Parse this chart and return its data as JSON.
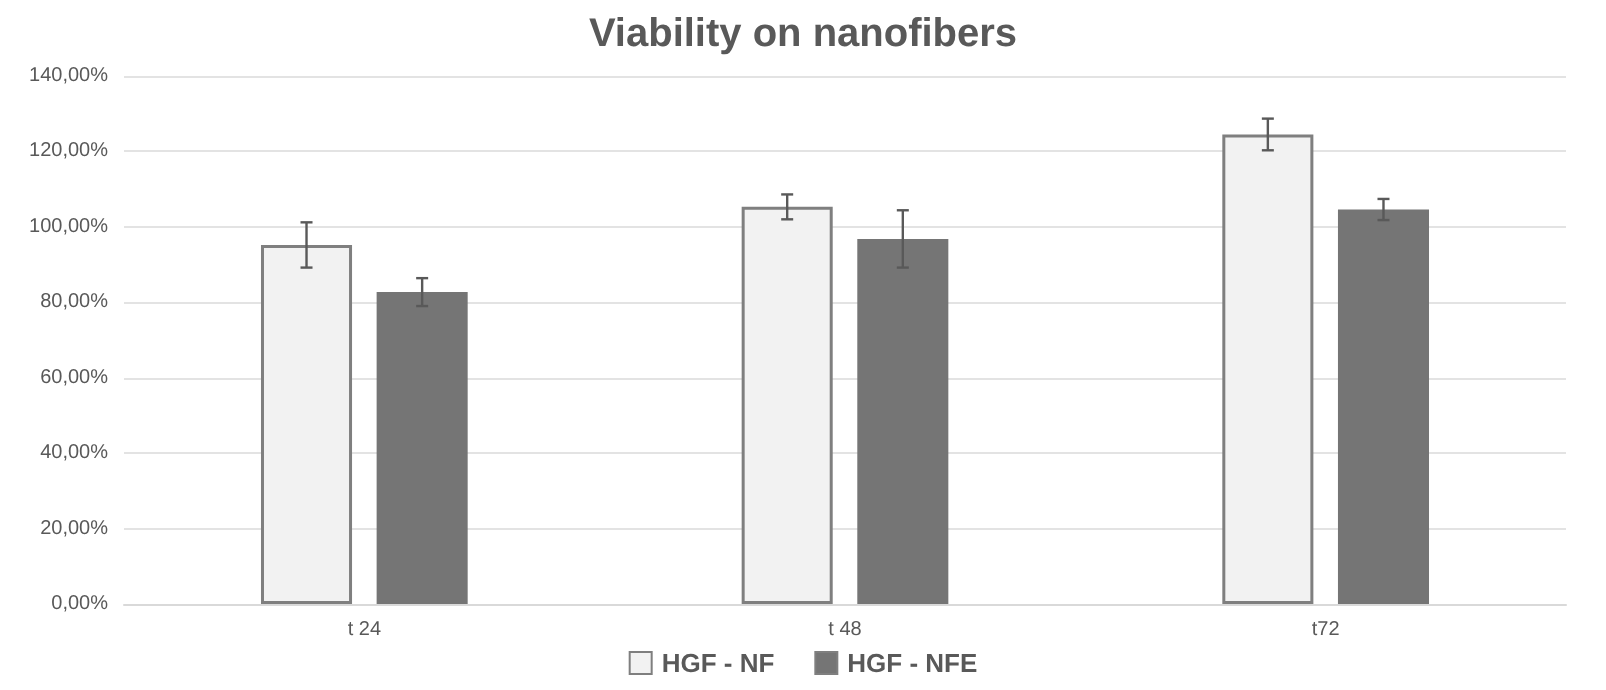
{
  "chart_data": {
    "type": "bar",
    "title": "Viability on nanofibers",
    "categories": [
      "t 24",
      "t 48",
      "t72"
    ],
    "series": [
      {
        "name": "HGF - NF",
        "color": "#f2f2f2",
        "values": [
          95.2,
          105.3,
          124.5
        ],
        "errors": [
          6,
          3.3,
          4.2
        ]
      },
      {
        "name": "HGF - NFE",
        "color": "#757575",
        "values": [
          82.7,
          96.8,
          104.6
        ],
        "errors": [
          3.7,
          7.6,
          2.8
        ]
      }
    ],
    "ylim": [
      0,
      140
    ],
    "yticks": [
      {
        "value": 0,
        "label": "0,00%"
      },
      {
        "value": 20,
        "label": "20,00%"
      },
      {
        "value": 40,
        "label": "40,00%"
      },
      {
        "value": 60,
        "label": "60,00%"
      },
      {
        "value": 80,
        "label": "80,00%"
      },
      {
        "value": 100,
        "label": "100,00%"
      },
      {
        "value": 120,
        "label": "120,00%"
      },
      {
        "value": 140,
        "label": "140,00%"
      }
    ],
    "grid": "y",
    "legend": "bottom"
  }
}
